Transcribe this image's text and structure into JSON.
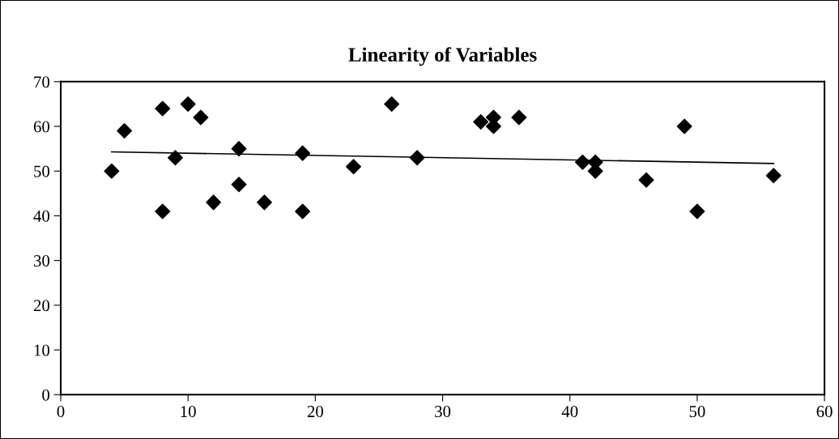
{
  "chart_data": {
    "type": "scatter",
    "title": "Linearity of Variables",
    "marker": "diamond",
    "grid": false,
    "legend": false,
    "xlim": [
      0,
      60
    ],
    "xticks": [
      0,
      10,
      20,
      30,
      40,
      50,
      60
    ],
    "ylim": [
      0,
      70
    ],
    "yticks": [
      0,
      10,
      20,
      30,
      40,
      50,
      60,
      70
    ],
    "series": [
      {
        "color": "#000000",
        "x": [
          4,
          5,
          8,
          8,
          9,
          10,
          11,
          12,
          14,
          14,
          16,
          19,
          19,
          23,
          26,
          28,
          33,
          34,
          34,
          36,
          41,
          42,
          42,
          46,
          49,
          50,
          56
        ],
        "values": [
          50,
          59,
          64,
          41,
          53,
          65,
          62,
          43,
          55,
          47,
          43,
          54,
          41,
          51,
          65,
          53,
          61,
          62,
          60,
          62,
          52,
          52,
          50,
          48,
          60,
          41,
          49
        ]
      },
      {
        "type": "line",
        "color": "#000000",
        "marker": "none",
        "line_style": "solid",
        "x": [
          4,
          56
        ],
        "values": [
          54.3,
          51.7
        ]
      }
    ]
  }
}
